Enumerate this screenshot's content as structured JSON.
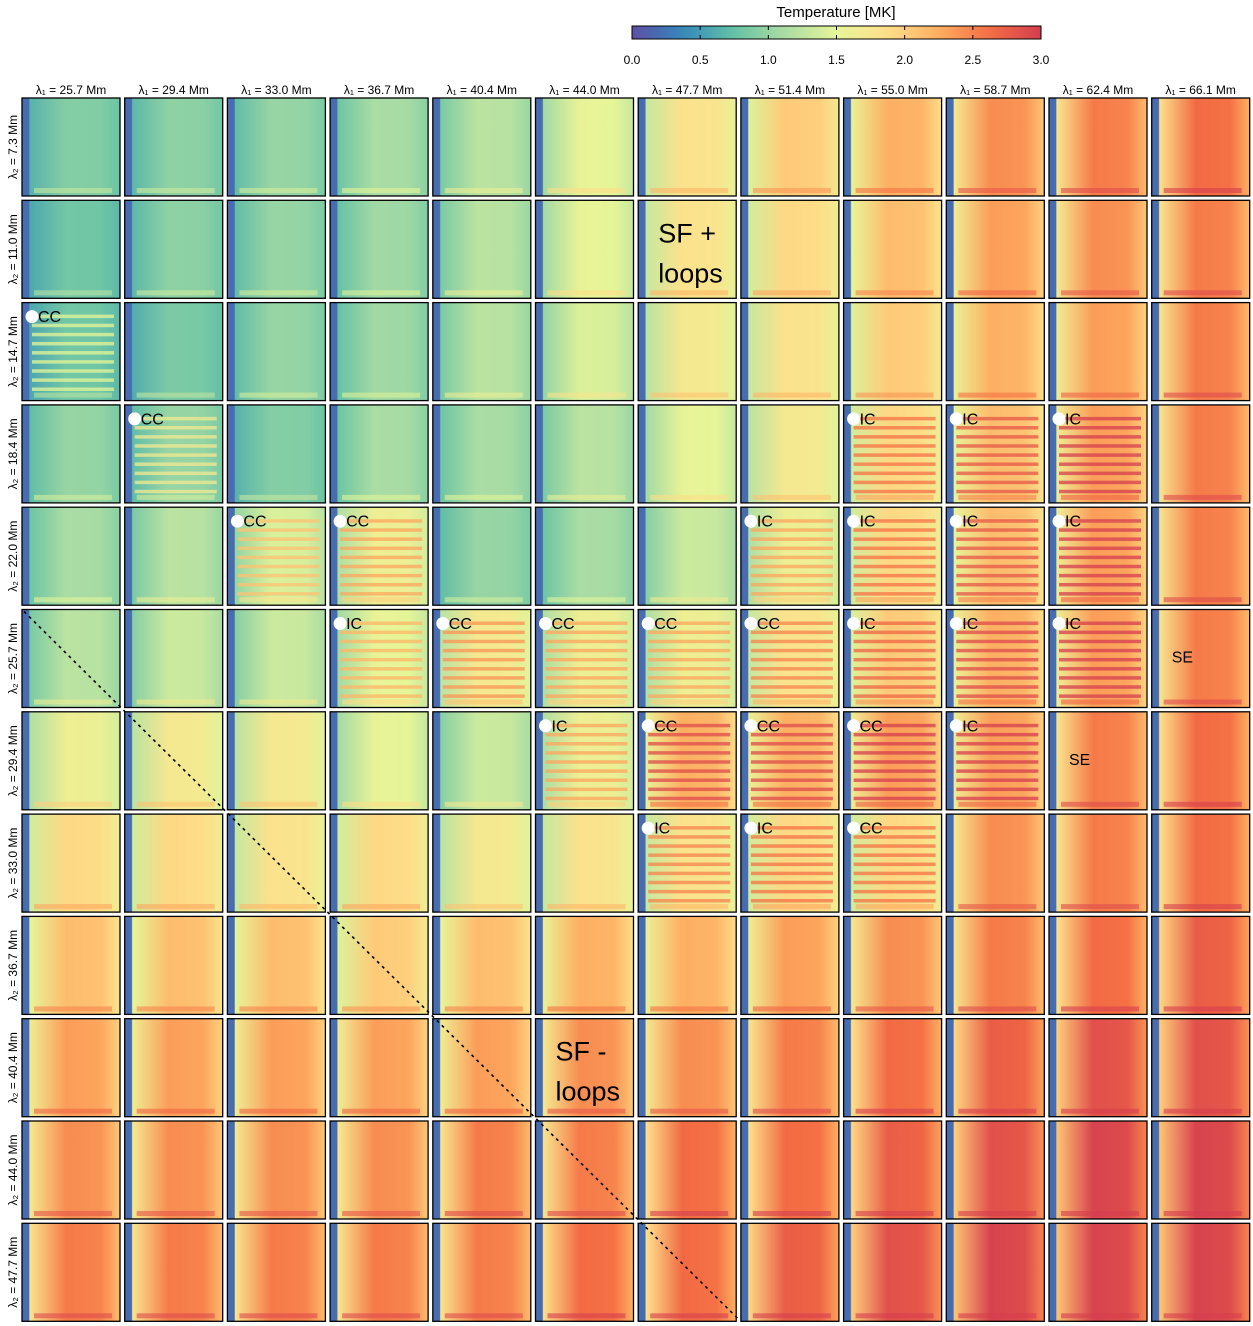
{
  "colorbar": {
    "title": "Temperature [MK]",
    "range": [
      0.0,
      3.0
    ],
    "ticks": [
      "0.0",
      "0.5",
      "1.0",
      "1.5",
      "2.0",
      "2.5",
      "3.0"
    ],
    "colormap": [
      "#5e4fa2",
      "#3288bd",
      "#66c2a5",
      "#abdda4",
      "#e6f598",
      "#fee08b",
      "#fdae61",
      "#f46d43",
      "#d53e4f"
    ]
  },
  "chart_data": {
    "type": "heatmap",
    "title": "",
    "colorbar_label": "Temperature [MK]",
    "columns": [
      "λ₁ = 25.7 Mm",
      "λ₁ = 29.4 Mm",
      "λ₁ = 33.0 Mm",
      "λ₁ = 36.7 Mm",
      "λ₁ = 40.4 Mm",
      "λ₁ = 44.0 Mm",
      "λ₁ = 47.7 Mm",
      "λ₁ = 51.4 Mm",
      "λ₁ = 55.0 Mm",
      "λ₁ = 58.7 Mm",
      "λ₁ = 62.4 Mm",
      "λ₁ = 66.1 Mm"
    ],
    "rows": [
      "λ₂ = 7.3 Mm",
      "λ₂ = 11.0 Mm",
      "λ₂ = 14.7 Mm",
      "λ₂ = 18.4 Mm",
      "λ₂ = 22.0 Mm",
      "λ₂ = 25.7 Mm",
      "λ₂ = 29.4 Mm",
      "λ₂ = 33.0 Mm",
      "λ₂ = 36.7 Mm",
      "λ₂ = 40.4 Mm",
      "λ₂ = 44.0 Mm",
      "λ₂ = 47.7 Mm"
    ],
    "mean_temperature_MK": [
      [
        0.9,
        0.95,
        1.0,
        1.1,
        1.2,
        1.5,
        1.8,
        2.0,
        2.2,
        2.4,
        2.5,
        2.6
      ],
      [
        0.8,
        0.95,
        1.0,
        1.05,
        1.2,
        1.5,
        1.8,
        1.9,
        2.1,
        2.3,
        2.4,
        2.5
      ],
      [
        0.8,
        0.85,
        1.0,
        1.05,
        1.2,
        1.4,
        1.7,
        1.8,
        2.0,
        2.2,
        2.3,
        2.5
      ],
      [
        1.0,
        1.0,
        0.9,
        1.1,
        1.1,
        1.2,
        1.5,
        1.7,
        1.9,
        2.1,
        2.3,
        2.5
      ],
      [
        1.1,
        1.2,
        1.4,
        1.6,
        1.0,
        1.1,
        1.3,
        1.6,
        1.9,
        2.1,
        2.3,
        2.5
      ],
      [
        1.2,
        1.3,
        1.3,
        1.5,
        1.7,
        1.6,
        1.6,
        1.8,
        2.0,
        2.2,
        2.3,
        2.5
      ],
      [
        1.6,
        1.7,
        1.7,
        1.5,
        1.3,
        1.6,
        2.2,
        2.2,
        2.3,
        2.3,
        2.5,
        2.6
      ],
      [
        1.9,
        1.9,
        1.8,
        1.9,
        1.7,
        1.8,
        1.8,
        1.9,
        1.9,
        2.4,
        2.5,
        2.6
      ],
      [
        2.1,
        2.1,
        2.1,
        2.0,
        2.1,
        2.2,
        2.2,
        2.3,
        2.4,
        2.5,
        2.6,
        2.7
      ],
      [
        2.3,
        2.3,
        2.3,
        2.3,
        2.3,
        2.4,
        2.4,
        2.5,
        2.6,
        2.7,
        2.8,
        2.8
      ],
      [
        2.4,
        2.4,
        2.4,
        2.4,
        2.5,
        2.5,
        2.6,
        2.6,
        2.7,
        2.8,
        2.9,
        2.9
      ],
      [
        2.5,
        2.5,
        2.5,
        2.5,
        2.5,
        2.6,
        2.6,
        2.7,
        2.8,
        2.9,
        2.9,
        2.9
      ]
    ],
    "cell_classes": [
      {
        "row": 2,
        "col": 0,
        "label": "CC"
      },
      {
        "row": 3,
        "col": 1,
        "label": "CC"
      },
      {
        "row": 3,
        "col": 8,
        "label": "IC"
      },
      {
        "row": 3,
        "col": 9,
        "label": "IC"
      },
      {
        "row": 3,
        "col": 10,
        "label": "IC"
      },
      {
        "row": 4,
        "col": 2,
        "label": "CC"
      },
      {
        "row": 4,
        "col": 3,
        "label": "CC"
      },
      {
        "row": 4,
        "col": 7,
        "label": "IC"
      },
      {
        "row": 4,
        "col": 8,
        "label": "IC"
      },
      {
        "row": 4,
        "col": 9,
        "label": "IC"
      },
      {
        "row": 4,
        "col": 10,
        "label": "IC"
      },
      {
        "row": 5,
        "col": 3,
        "label": "IC"
      },
      {
        "row": 5,
        "col": 4,
        "label": "CC"
      },
      {
        "row": 5,
        "col": 5,
        "label": "CC"
      },
      {
        "row": 5,
        "col": 6,
        "label": "CC"
      },
      {
        "row": 5,
        "col": 7,
        "label": "CC"
      },
      {
        "row": 5,
        "col": 8,
        "label": "IC"
      },
      {
        "row": 5,
        "col": 9,
        "label": "IC"
      },
      {
        "row": 5,
        "col": 10,
        "label": "IC"
      },
      {
        "row": 6,
        "col": 5,
        "label": "IC"
      },
      {
        "row": 6,
        "col": 6,
        "label": "CC"
      },
      {
        "row": 6,
        "col": 7,
        "label": "CC"
      },
      {
        "row": 6,
        "col": 8,
        "label": "CC"
      },
      {
        "row": 6,
        "col": 9,
        "label": "IC"
      },
      {
        "row": 7,
        "col": 6,
        "label": "IC"
      },
      {
        "row": 7,
        "col": 7,
        "label": "IC"
      },
      {
        "row": 7,
        "col": 8,
        "label": "CC"
      }
    ],
    "text_annotations": [
      {
        "row": 5,
        "col": 11,
        "text": "SE"
      },
      {
        "row": 6,
        "col": 10,
        "text": "SE"
      }
    ],
    "region_labels": [
      {
        "lines": [
          "SF +",
          "loops"
        ],
        "row": 1,
        "col": 6
      },
      {
        "lines": [
          "SF -",
          "loops"
        ],
        "row": 9,
        "col": 5
      }
    ],
    "diagonal": "dotted line λ₁ = λ₂"
  }
}
